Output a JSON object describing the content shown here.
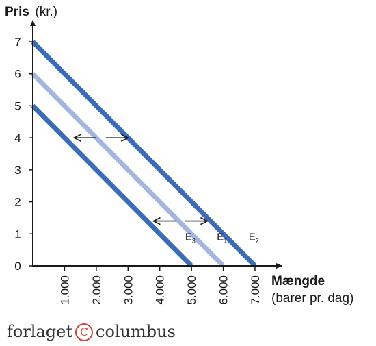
{
  "chart_data": {
    "type": "line",
    "ylabel_bold": "Pris",
    "ylabel_unit": "(kr.)",
    "xlabel_bold": "Mængde",
    "xlabel_unit": "(barer pr. dag)",
    "xlim": [
      0,
      7400
    ],
    "ylim": [
      0,
      7.4
    ],
    "x_ticks": [
      {
        "value": 1000,
        "label": "1.000"
      },
      {
        "value": 2000,
        "label": "2.000"
      },
      {
        "value": 3000,
        "label": "3.000"
      },
      {
        "value": 4000,
        "label": "4.000"
      },
      {
        "value": 5000,
        "label": "5.000"
      },
      {
        "value": 6000,
        "label": "6.000"
      },
      {
        "value": 7000,
        "label": "7.000"
      }
    ],
    "y_ticks": [
      {
        "value": 0,
        "label": "0"
      },
      {
        "value": 1,
        "label": "1"
      },
      {
        "value": 2,
        "label": "2"
      },
      {
        "value": 3,
        "label": "3"
      },
      {
        "value": 4,
        "label": "4"
      },
      {
        "value": 5,
        "label": "5"
      },
      {
        "value": 6,
        "label": "6"
      },
      {
        "value": 7,
        "label": "7"
      }
    ],
    "grid": false,
    "series": [
      {
        "name": "E2",
        "base": "E",
        "sub": "2",
        "points": [
          [
            0,
            7
          ],
          [
            7000,
            0
          ]
        ],
        "color": "#3a6db5",
        "label_at": [
          6800,
          0.8
        ]
      },
      {
        "name": "E1",
        "base": "E",
        "sub": "1",
        "points": [
          [
            0,
            6
          ],
          [
            6000,
            0
          ]
        ],
        "color": "#a4b6df",
        "label_at": [
          5800,
          0.8
        ]
      },
      {
        "name": "E3",
        "base": "E",
        "sub": "3",
        "points": [
          [
            0,
            5
          ],
          [
            5000,
            0
          ]
        ],
        "color": "#3a6db5",
        "label_at": [
          4800,
          0.8
        ]
      }
    ],
    "annotations": [
      {
        "type": "arrow",
        "direction": "left",
        "from": [
          2000,
          4
        ],
        "to": [
          1300,
          4
        ]
      },
      {
        "type": "arrow",
        "direction": "right",
        "from": [
          2300,
          4
        ],
        "to": [
          3000,
          4
        ]
      },
      {
        "type": "arrow",
        "direction": "left",
        "from": [
          4500,
          1.4
        ],
        "to": [
          3800,
          1.4
        ]
      },
      {
        "type": "arrow",
        "direction": "right",
        "from": [
          4800,
          1.4
        ],
        "to": [
          5500,
          1.4
        ]
      }
    ]
  },
  "publisher": {
    "left": "forlaget",
    "mark": "C",
    "right": "columbus"
  },
  "colors": {
    "dark_blue": "#3a6db5",
    "light_blue": "#a4b6df",
    "axis": "#1a1a1a",
    "publisher_mark": "#c8463c"
  }
}
